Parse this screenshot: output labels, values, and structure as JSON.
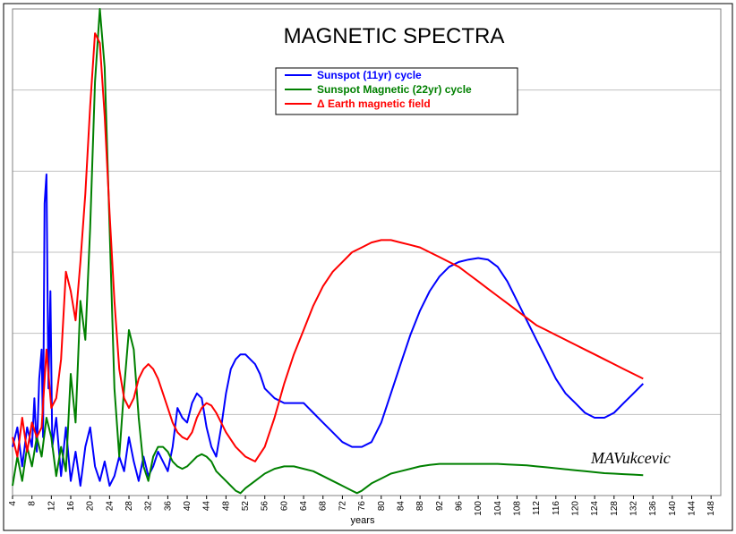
{
  "chart_data": {
    "type": "line",
    "title": "MAGNETIC SPECTRA",
    "xlabel": "years",
    "ylabel": "",
    "signature": "MAVukcevic",
    "x_ticks": [
      4,
      8,
      12,
      16,
      20,
      24,
      28,
      32,
      36,
      40,
      44,
      48,
      52,
      56,
      60,
      64,
      68,
      72,
      76,
      80,
      84,
      88,
      92,
      96,
      100,
      104,
      108,
      112,
      116,
      120,
      124,
      128,
      132,
      136,
      140,
      144,
      148
    ],
    "xlim": [
      4,
      150
    ],
    "ylim": [
      0,
      100
    ],
    "y_tick_labels_shown": false,
    "grid": "horizontal",
    "legend": "top-center",
    "series": [
      {
        "name": "Sunspot  (11yr) cycle",
        "color": "#0000ff",
        "points": [
          [
            4,
            10
          ],
          [
            5,
            14
          ],
          [
            6,
            6
          ],
          [
            7,
            14
          ],
          [
            8,
            10
          ],
          [
            8.5,
            20
          ],
          [
            9,
            9
          ],
          [
            9.5,
            24
          ],
          [
            10,
            30
          ],
          [
            10.3,
            12
          ],
          [
            10.6,
            60
          ],
          [
            11,
            66
          ],
          [
            11.4,
            22
          ],
          [
            11.8,
            42
          ],
          [
            12.2,
            10
          ],
          [
            13,
            16
          ],
          [
            14,
            4
          ],
          [
            15,
            14
          ],
          [
            16,
            3
          ],
          [
            17,
            9
          ],
          [
            18,
            2
          ],
          [
            19,
            10
          ],
          [
            20,
            14
          ],
          [
            21,
            6
          ],
          [
            22,
            3
          ],
          [
            23,
            7
          ],
          [
            24,
            2
          ],
          [
            25,
            4
          ],
          [
            26,
            8
          ],
          [
            27,
            5
          ],
          [
            28,
            12
          ],
          [
            29,
            7
          ],
          [
            30,
            3
          ],
          [
            31,
            8
          ],
          [
            32,
            4
          ],
          [
            33,
            6
          ],
          [
            34,
            9
          ],
          [
            35,
            7
          ],
          [
            36,
            5
          ],
          [
            37,
            10
          ],
          [
            38,
            18
          ],
          [
            39,
            16
          ],
          [
            40,
            15
          ],
          [
            41,
            19
          ],
          [
            42,
            21
          ],
          [
            43,
            20
          ],
          [
            44,
            14
          ],
          [
            45,
            10
          ],
          [
            46,
            8
          ],
          [
            47,
            14
          ],
          [
            48,
            21
          ],
          [
            49,
            26
          ],
          [
            50,
            28
          ],
          [
            51,
            29
          ],
          [
            52,
            29
          ],
          [
            53,
            28
          ],
          [
            54,
            27
          ],
          [
            55,
            25
          ],
          [
            56,
            22
          ],
          [
            58,
            20
          ],
          [
            60,
            19
          ],
          [
            62,
            19
          ],
          [
            64,
            19
          ],
          [
            66,
            17
          ],
          [
            68,
            15
          ],
          [
            70,
            13
          ],
          [
            72,
            11
          ],
          [
            74,
            10
          ],
          [
            76,
            10
          ],
          [
            78,
            11
          ],
          [
            80,
            15
          ],
          [
            82,
            21
          ],
          [
            84,
            27
          ],
          [
            86,
            33
          ],
          [
            88,
            38
          ],
          [
            90,
            42
          ],
          [
            92,
            45
          ],
          [
            94,
            47
          ],
          [
            96,
            48
          ],
          [
            98,
            48.5
          ],
          [
            100,
            48.8
          ],
          [
            102,
            48.5
          ],
          [
            104,
            47
          ],
          [
            106,
            44
          ],
          [
            108,
            40
          ],
          [
            110,
            36
          ],
          [
            112,
            32
          ],
          [
            114,
            28
          ],
          [
            116,
            24
          ],
          [
            118,
            21
          ],
          [
            120,
            19
          ],
          [
            122,
            17
          ],
          [
            124,
            16
          ],
          [
            126,
            16
          ],
          [
            128,
            17
          ],
          [
            130,
            19
          ],
          [
            132,
            21
          ],
          [
            134,
            23
          ]
        ]
      },
      {
        "name": "Sunspot Magnetic (22yr) cycle",
        "color": "#008000",
        "points": [
          [
            4,
            2
          ],
          [
            5,
            8
          ],
          [
            6,
            3
          ],
          [
            7,
            10
          ],
          [
            8,
            6
          ],
          [
            9,
            12
          ],
          [
            10,
            8
          ],
          [
            11,
            16
          ],
          [
            12,
            12
          ],
          [
            13,
            4
          ],
          [
            14,
            10
          ],
          [
            15,
            5
          ],
          [
            16,
            25
          ],
          [
            17,
            15
          ],
          [
            18,
            40
          ],
          [
            19,
            32
          ],
          [
            20,
            55
          ],
          [
            21,
            85
          ],
          [
            22,
            100
          ],
          [
            23,
            88
          ],
          [
            24,
            55
          ],
          [
            25,
            22
          ],
          [
            26,
            8
          ],
          [
            27,
            22
          ],
          [
            28,
            34
          ],
          [
            29,
            30
          ],
          [
            30,
            16
          ],
          [
            31,
            6
          ],
          [
            32,
            3
          ],
          [
            33,
            8
          ],
          [
            34,
            10
          ],
          [
            35,
            10
          ],
          [
            36,
            9
          ],
          [
            37,
            7
          ],
          [
            38,
            6
          ],
          [
            39,
            5.5
          ],
          [
            40,
            6
          ],
          [
            41,
            7
          ],
          [
            42,
            8
          ],
          [
            43,
            8.5
          ],
          [
            44,
            8
          ],
          [
            45,
            7
          ],
          [
            46,
            5
          ],
          [
            48,
            3
          ],
          [
            50,
            1
          ],
          [
            51,
            0.5
          ],
          [
            52,
            1.5
          ],
          [
            54,
            3
          ],
          [
            56,
            4.5
          ],
          [
            58,
            5.5
          ],
          [
            60,
            6
          ],
          [
            62,
            6
          ],
          [
            64,
            5.5
          ],
          [
            66,
            5
          ],
          [
            68,
            4
          ],
          [
            70,
            3
          ],
          [
            72,
            2
          ],
          [
            74,
            1
          ],
          [
            75,
            0.5
          ],
          [
            76,
            1
          ],
          [
            78,
            2.5
          ],
          [
            80,
            3.5
          ],
          [
            82,
            4.5
          ],
          [
            84,
            5
          ],
          [
            86,
            5.5
          ],
          [
            88,
            6
          ],
          [
            90,
            6.3
          ],
          [
            92,
            6.5
          ],
          [
            94,
            6.5
          ],
          [
            96,
            6.5
          ],
          [
            98,
            6.5
          ],
          [
            100,
            6.5
          ],
          [
            102,
            6.5
          ],
          [
            104,
            6.5
          ],
          [
            106,
            6.4
          ],
          [
            108,
            6.3
          ],
          [
            110,
            6.2
          ],
          [
            112,
            6
          ],
          [
            114,
            5.8
          ],
          [
            116,
            5.6
          ],
          [
            118,
            5.4
          ],
          [
            120,
            5.2
          ],
          [
            122,
            5
          ],
          [
            124,
            4.8
          ],
          [
            126,
            4.6
          ],
          [
            128,
            4.5
          ],
          [
            130,
            4.4
          ],
          [
            132,
            4.3
          ],
          [
            134,
            4.2
          ]
        ]
      },
      {
        "name": "Δ Earth magnetic field",
        "color": "#ff0000",
        "points": [
          [
            4,
            12
          ],
          [
            5,
            8
          ],
          [
            6,
            16
          ],
          [
            7,
            9
          ],
          [
            8,
            15
          ],
          [
            9,
            12
          ],
          [
            10,
            14
          ],
          [
            11,
            30
          ],
          [
            12,
            18
          ],
          [
            13,
            20
          ],
          [
            14,
            28
          ],
          [
            15,
            46
          ],
          [
            16,
            42
          ],
          [
            17,
            36
          ],
          [
            18,
            48
          ],
          [
            19,
            62
          ],
          [
            20,
            80
          ],
          [
            21,
            95
          ],
          [
            22,
            93
          ],
          [
            23,
            78
          ],
          [
            24,
            58
          ],
          [
            25,
            40
          ],
          [
            26,
            26
          ],
          [
            27,
            20
          ],
          [
            28,
            18
          ],
          [
            29,
            20
          ],
          [
            30,
            24
          ],
          [
            31,
            26
          ],
          [
            32,
            27
          ],
          [
            33,
            26
          ],
          [
            34,
            24
          ],
          [
            35,
            21
          ],
          [
            36,
            18
          ],
          [
            37,
            15
          ],
          [
            38,
            13
          ],
          [
            39,
            12
          ],
          [
            40,
            11.5
          ],
          [
            41,
            13
          ],
          [
            42,
            16
          ],
          [
            43,
            18
          ],
          [
            44,
            19
          ],
          [
            45,
            18.5
          ],
          [
            46,
            17
          ],
          [
            47,
            15
          ],
          [
            48,
            13
          ],
          [
            50,
            10
          ],
          [
            52,
            8
          ],
          [
            54,
            7
          ],
          [
            56,
            10
          ],
          [
            58,
            16
          ],
          [
            60,
            23
          ],
          [
            62,
            29
          ],
          [
            64,
            34
          ],
          [
            66,
            39
          ],
          [
            68,
            43
          ],
          [
            70,
            46
          ],
          [
            72,
            48
          ],
          [
            74,
            50
          ],
          [
            76,
            51
          ],
          [
            78,
            52
          ],
          [
            80,
            52.5
          ],
          [
            82,
            52.5
          ],
          [
            84,
            52
          ],
          [
            86,
            51.5
          ],
          [
            88,
            51
          ],
          [
            90,
            50
          ],
          [
            92,
            49
          ],
          [
            94,
            48
          ],
          [
            96,
            47
          ],
          [
            98,
            45.5
          ],
          [
            100,
            44
          ],
          [
            102,
            42.5
          ],
          [
            104,
            41
          ],
          [
            106,
            39.5
          ],
          [
            108,
            38
          ],
          [
            110,
            36.5
          ],
          [
            112,
            35
          ],
          [
            114,
            34
          ],
          [
            116,
            33
          ],
          [
            118,
            32
          ],
          [
            120,
            31
          ],
          [
            122,
            30
          ],
          [
            124,
            29
          ],
          [
            126,
            28
          ],
          [
            128,
            27
          ],
          [
            130,
            26
          ],
          [
            132,
            25
          ],
          [
            134,
            24
          ]
        ]
      }
    ]
  }
}
